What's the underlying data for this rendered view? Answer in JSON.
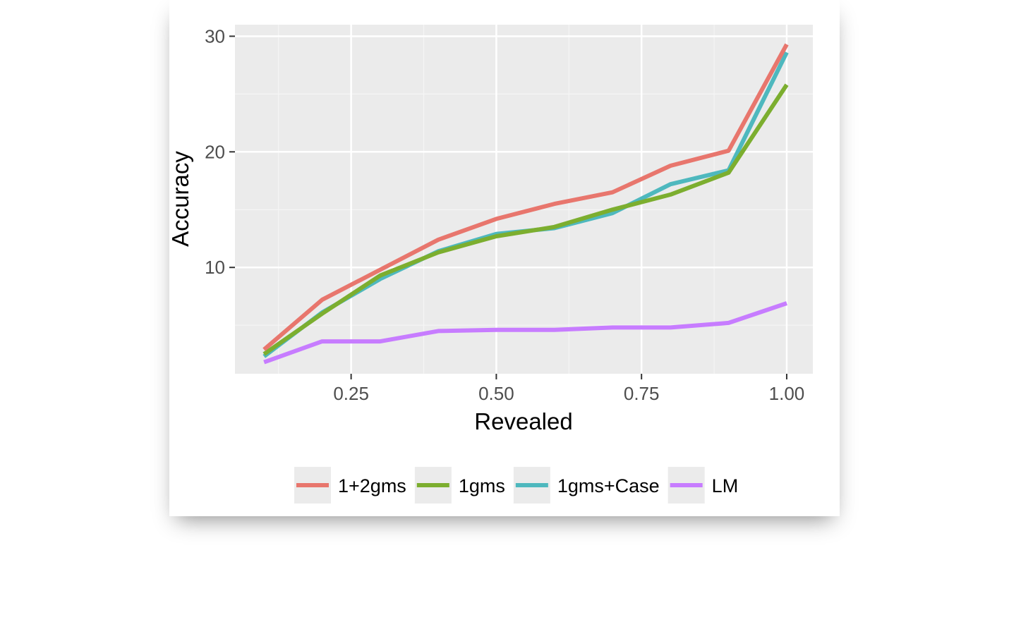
{
  "chart_data": {
    "type": "line",
    "xlabel": "Revealed",
    "ylabel": "Accuracy",
    "xlim": [
      0.05,
      1.045
    ],
    "ylim": [
      0.8,
      31
    ],
    "x_ticks": [
      0.25,
      0.5,
      0.75,
      1.0
    ],
    "x_tick_labels": [
      "0.25",
      "0.50",
      "0.75",
      "1.00"
    ],
    "y_ticks": [
      10,
      20,
      30
    ],
    "y_tick_labels": [
      "10",
      "20",
      "30"
    ],
    "grid": true,
    "legend_position": "bottom",
    "x": [
      0.1,
      0.2,
      0.3,
      0.4,
      0.5,
      0.6,
      0.7,
      0.8,
      0.9,
      1.0
    ],
    "series": [
      {
        "name": "1+2gms",
        "color": "#E8766D",
        "values": [
          2.9,
          7.2,
          9.8,
          12.4,
          14.2,
          15.5,
          16.5,
          18.8,
          20.1,
          29.3
        ]
      },
      {
        "name": "1gms",
        "color": "#7CAE2F",
        "values": [
          2.5,
          6.0,
          9.3,
          11.3,
          12.7,
          13.5,
          15.0,
          16.3,
          18.2,
          25.8
        ]
      },
      {
        "name": "1gms+Case",
        "color": "#4EB8BE",
        "values": [
          2.3,
          6.1,
          9.0,
          11.4,
          12.9,
          13.4,
          14.7,
          17.2,
          18.4,
          28.6
        ]
      },
      {
        "name": "LM",
        "color": "#C77CFF",
        "values": [
          1.8,
          3.6,
          3.6,
          4.5,
          4.6,
          4.6,
          4.8,
          4.8,
          5.2,
          6.9
        ]
      }
    ]
  },
  "colors": {
    "panel_background": "#EBEBEB",
    "grid_major": "#FFFFFF",
    "grid_minor": "#F5F5F5",
    "legend_key_background": "#EBEBEB"
  }
}
